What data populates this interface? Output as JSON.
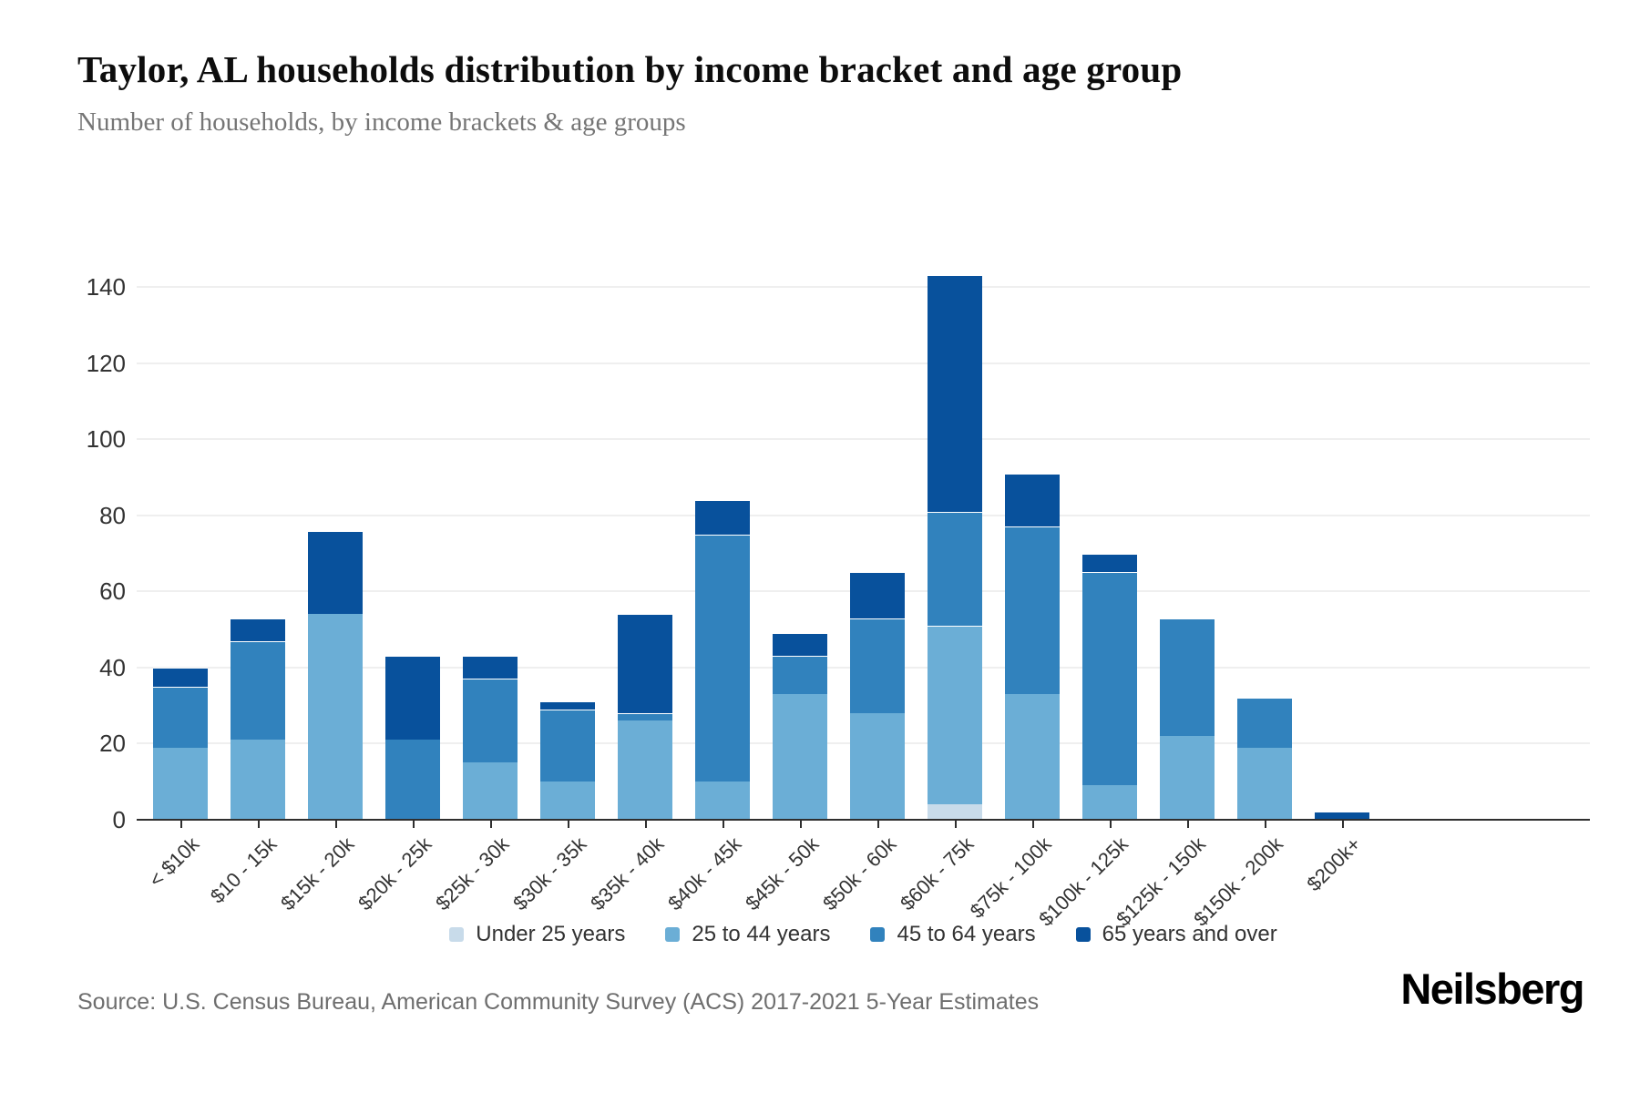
{
  "header": {
    "title": "Taylor, AL households distribution by income bracket and age group",
    "subtitle": "Number of households, by income brackets & age groups"
  },
  "footer": {
    "source": "Source: U.S. Census Bureau, American Community Survey (ACS) 2017-2021 5-Year Estimates",
    "brand": "Neilsberg"
  },
  "colors": {
    "under_25": "#c8dbea",
    "age_25_44": "#6baed6",
    "age_45_64": "#3182bd",
    "age_65_over": "#08519c",
    "gridline": "#efefef",
    "axis": "#2f2f2f",
    "label_text": "#333333"
  },
  "chart_data": {
    "type": "bar",
    "stacked": true,
    "title": "Taylor, AL households distribution by income bracket and age group",
    "xlabel": "",
    "ylabel": "",
    "ylim": [
      0,
      140
    ],
    "yticks": [
      0,
      20,
      40,
      60,
      80,
      100,
      120,
      140
    ],
    "grid": true,
    "legend_position": "bottom",
    "categories": [
      "< $10k",
      "$10 - 15k",
      "$15k - 20k",
      "$20k - 25k",
      "$25k - 30k",
      "$30k - 35k",
      "$35k - 40k",
      "$40k - 45k",
      "$45k - 50k",
      "$50k - 60k",
      "$60k - 75k",
      "$75k - 100k",
      "$100k - 125k",
      "$125k - 150k",
      "$150k - 200k",
      "$200k+"
    ],
    "series": [
      {
        "name": "Under 25 years",
        "color": "#c8dbea",
        "values": [
          0,
          0,
          0,
          0,
          0,
          0,
          0,
          0,
          0,
          0,
          4,
          0,
          0,
          0,
          0,
          0
        ]
      },
      {
        "name": "25 to 44 years",
        "color": "#6baed6",
        "values": [
          19,
          21,
          54,
          0,
          15,
          10,
          26,
          10,
          33,
          28,
          47,
          33,
          9,
          22,
          19,
          0
        ]
      },
      {
        "name": "45 to 64 years",
        "color": "#3182bd",
        "values": [
          16,
          26,
          0,
          21,
          22,
          19,
          2,
          65,
          10,
          25,
          30,
          44,
          56,
          31,
          13,
          0
        ]
      },
      {
        "name": "65 years and over",
        "color": "#08519c",
        "values": [
          5,
          6,
          22,
          22,
          6,
          2,
          26,
          9,
          6,
          12,
          62,
          14,
          5,
          0,
          0,
          2
        ]
      }
    ],
    "totals": [
      40,
      53,
      76,
      43,
      43,
      31,
      54,
      84,
      49,
      65,
      143,
      91,
      70,
      53,
      32,
      2
    ]
  }
}
